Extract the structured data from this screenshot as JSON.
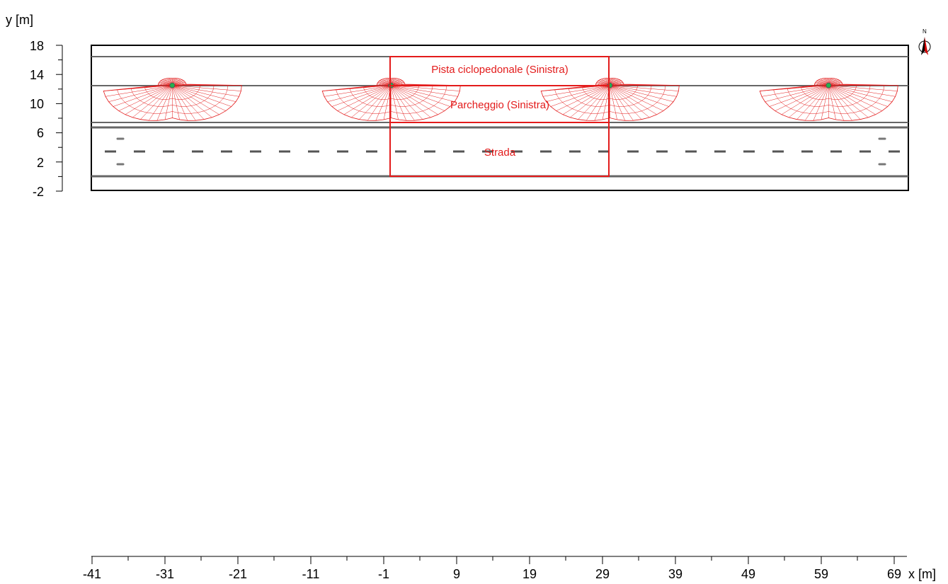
{
  "axes": {
    "y_label": "y [m]",
    "x_label": "x [m]",
    "y_ticks": [
      "18",
      "14",
      "10",
      "6",
      "2",
      "-2"
    ],
    "x_ticks": [
      "-41",
      "-31",
      "-21",
      "-11",
      "-1",
      "9",
      "19",
      "29",
      "39",
      "49",
      "59",
      "69"
    ]
  },
  "areas": [
    {
      "name": "Pista ciclopedonale (Sinistra)"
    },
    {
      "name": "Parcheggio (Sinistra)"
    },
    {
      "name": "Strada"
    }
  ],
  "luminaires_x_m": [
    -30,
    0,
    30,
    60
  ],
  "luminaires_y_m": 12.5,
  "compass": {
    "label": "N"
  },
  "colors": {
    "area_outline": "#e31b1b",
    "isoline": "#e31b1b",
    "road_lines": "#666666",
    "luminaire": "#22b14c"
  }
}
